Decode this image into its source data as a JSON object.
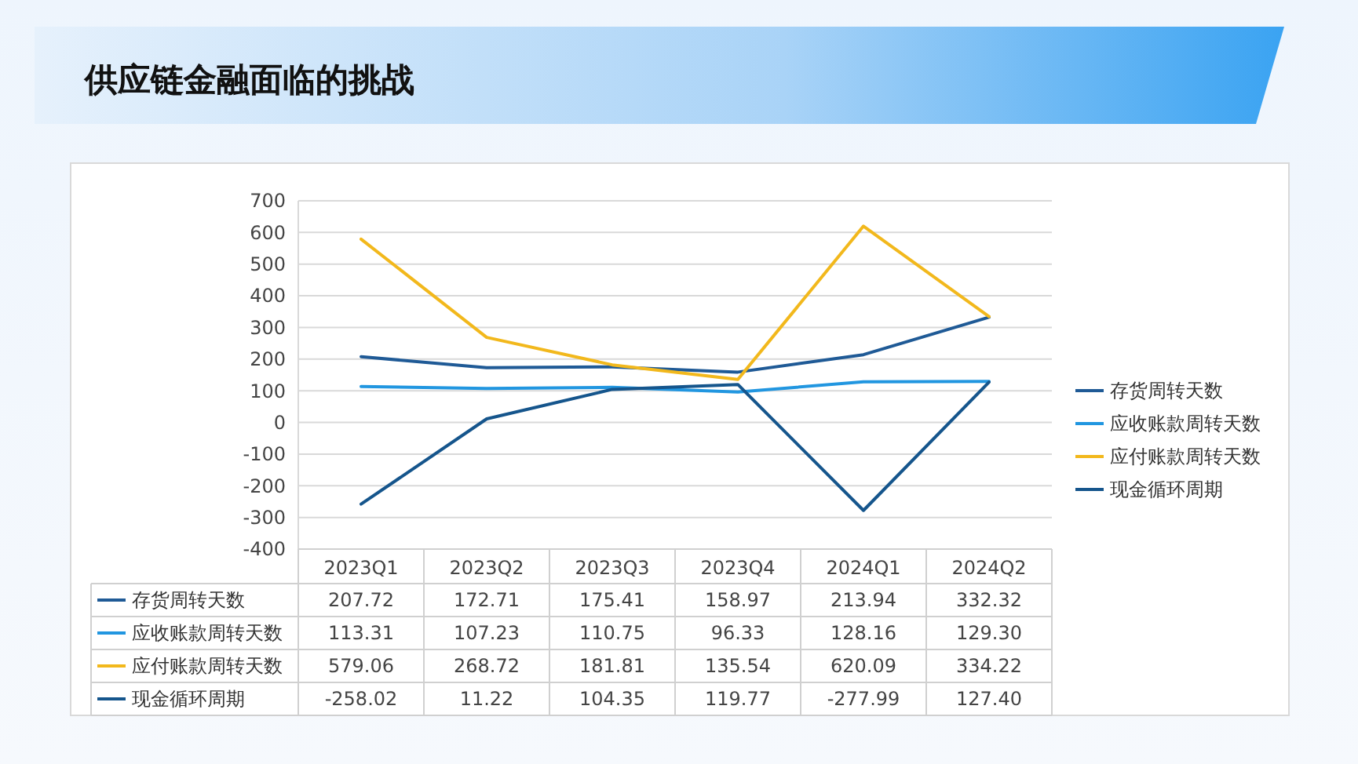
{
  "chart_data": {
    "type": "line",
    "title": "供应链金融面临的挑战",
    "categories": [
      "2023Q1",
      "2023Q2",
      "2023Q3",
      "2023Q4",
      "2024Q1",
      "2024Q2"
    ],
    "series": [
      {
        "name": "存货周转天数",
        "color": "#1f5a96",
        "values": [
          207.72,
          172.71,
          175.41,
          158.97,
          213.94,
          332.32
        ],
        "value_labels": [
          "207.72",
          "172.71",
          "175.41",
          "158.97",
          "213.94",
          "332.32"
        ]
      },
      {
        "name": "应收账款周转天数",
        "color": "#2196e0",
        "values": [
          113.31,
          107.23,
          110.75,
          96.33,
          128.16,
          129.3
        ],
        "value_labels": [
          "113.31",
          "107.23",
          "110.75",
          "96.33",
          "128.16",
          "129.30"
        ]
      },
      {
        "name": "应付账款周转天数",
        "color": "#f2b81c",
        "values": [
          579.06,
          268.72,
          181.81,
          135.54,
          620.09,
          334.22
        ],
        "value_labels": [
          "579.06",
          "268.72",
          "181.81",
          "135.54",
          "620.09",
          "334.22"
        ]
      },
      {
        "name": "现金循环周期",
        "color": "#15558c",
        "values": [
          -258.02,
          11.22,
          104.35,
          119.77,
          -277.99,
          127.4
        ],
        "value_labels": [
          "-258.02",
          "11.22",
          "104.35",
          "119.77",
          "-277.99",
          "127.40"
        ]
      }
    ],
    "ylim": [
      -400,
      700
    ],
    "yticks": [
      -400,
      -300,
      -200,
      -100,
      0,
      100,
      200,
      300,
      400,
      500,
      600,
      700
    ],
    "grid": "y",
    "legend": "right",
    "marker": "none",
    "line_style": "solid"
  }
}
